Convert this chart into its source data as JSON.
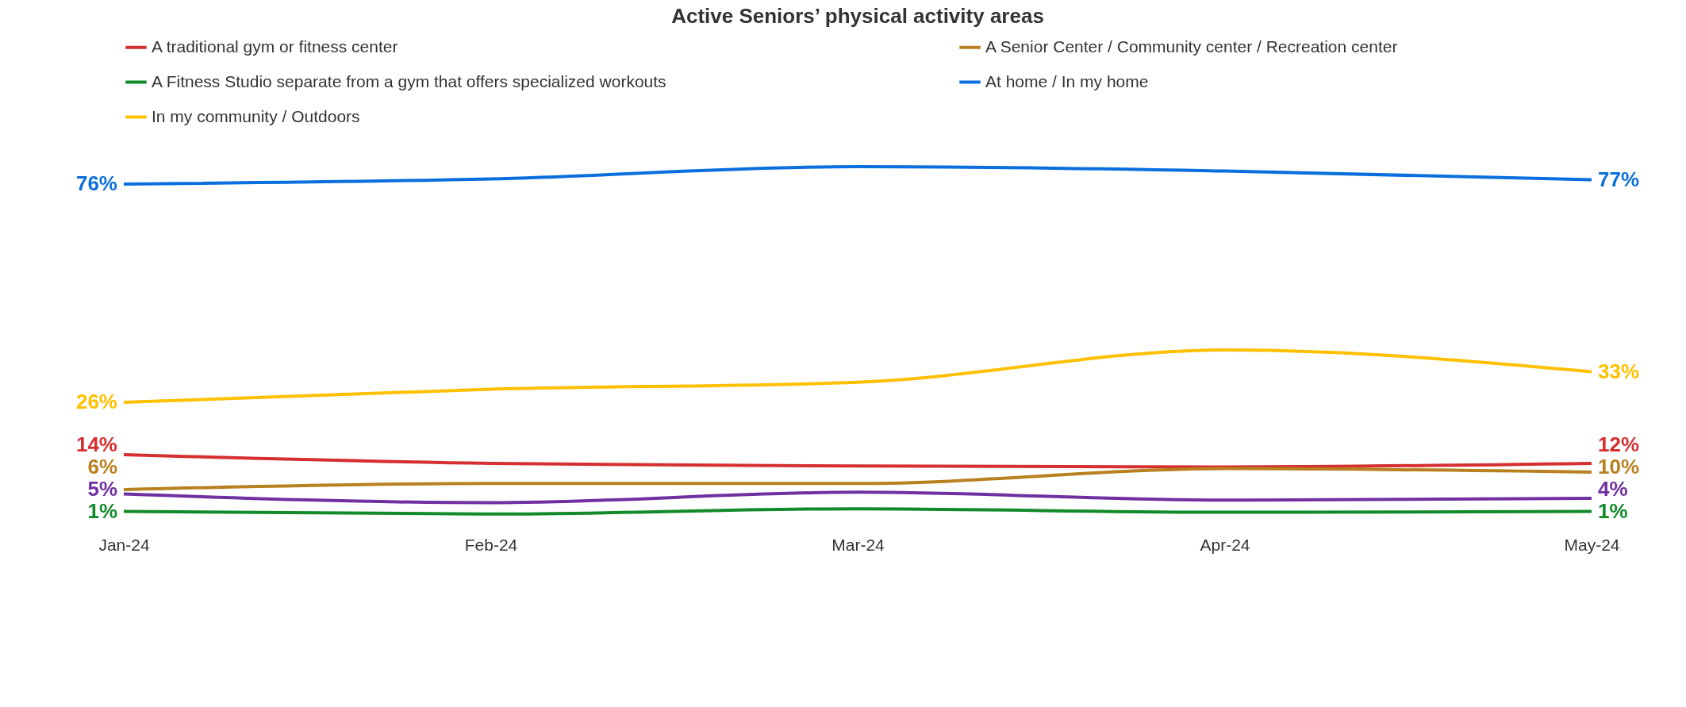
{
  "chart_data": {
    "type": "line",
    "title": "Active Seniors’ physical activity areas",
    "categories": [
      "Jan-24",
      "Feb-24",
      "Mar-24",
      "Apr-24",
      "May-24"
    ],
    "legend": "top",
    "grid": false,
    "marker": "none",
    "line_style": "solid",
    "series": [
      {
        "name": "A traditional gym or fitness center",
        "color": "#d62f30",
        "values": [
          14,
          12,
          11.4,
          11.2,
          12
        ],
        "value_labels": [
          "14%",
          null,
          null,
          null,
          "12%"
        ]
      },
      {
        "color": "#7030a0",
        "values": [
          5,
          3,
          5.4,
          3.6,
          4
        ],
        "value_labels": [
          "5%",
          null,
          null,
          null,
          "4%"
        ]
      },
      {
        "name": "A Senior Center / Community center / Recreation center",
        "color": "#b8801f",
        "values": [
          6,
          7.4,
          7.4,
          10.8,
          10
        ],
        "value_labels": [
          "6%",
          null,
          null,
          null,
          "10%"
        ]
      },
      {
        "name": "A Fitness Studio separate from a gym that offers specialized workouts",
        "color": "#138a2a",
        "values": [
          1,
          0.4,
          1.6,
          0.8,
          1
        ],
        "value_labels": [
          "1%",
          null,
          null,
          null,
          "1%"
        ]
      },
      {
        "name": "At home / In my home",
        "color": "#0a6fde",
        "values": [
          76,
          77.2,
          80,
          79,
          77
        ],
        "value_labels": [
          "76%",
          null,
          null,
          null,
          "77%"
        ]
      },
      {
        "name": "In my community / Outdoors",
        "color": "#ffc000",
        "values": [
          26,
          29,
          30.6,
          38,
          33
        ],
        "value_labels": [
          "26%",
          null,
          null,
          null,
          "33%"
        ]
      }
    ]
  }
}
